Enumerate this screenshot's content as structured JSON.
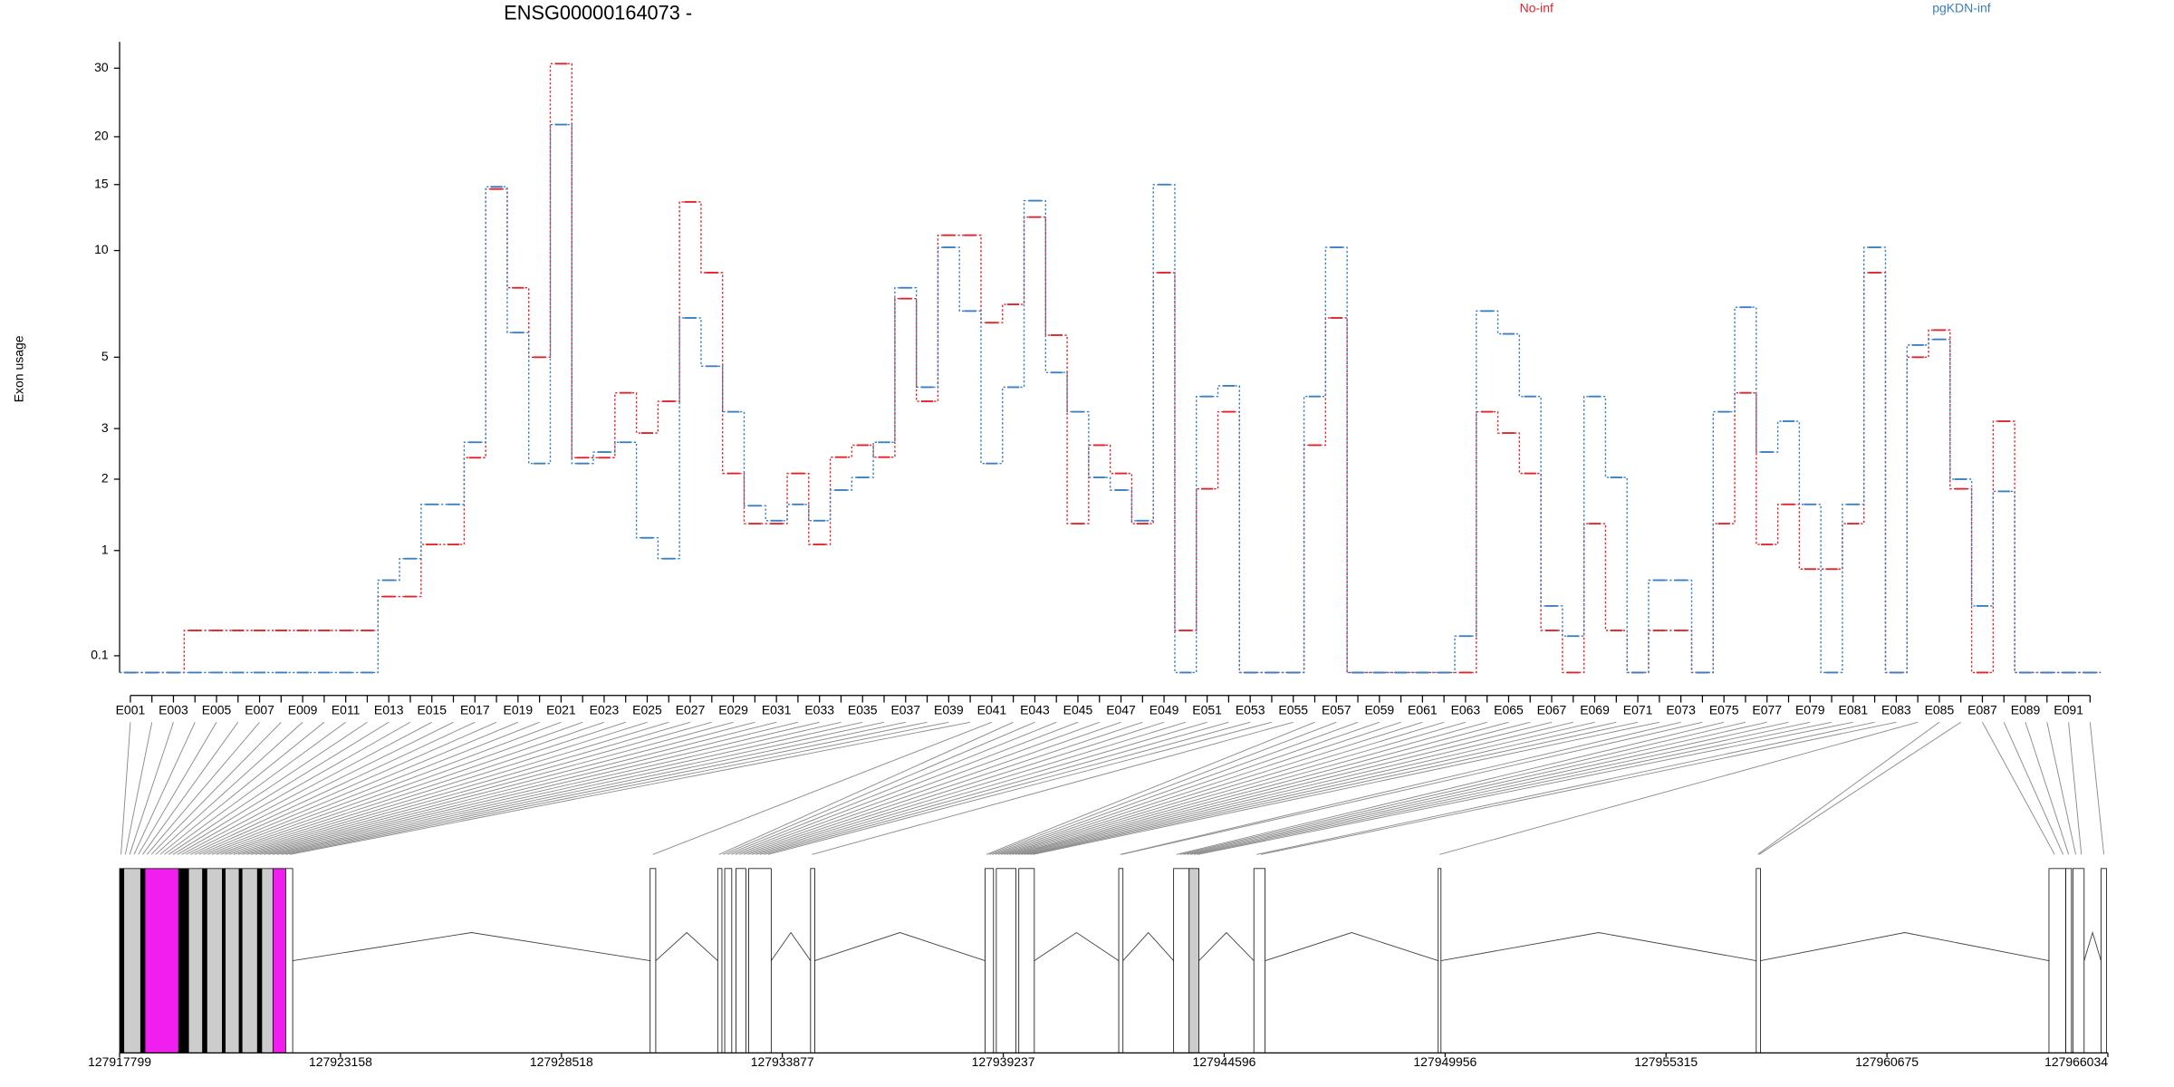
{
  "chart_data": {
    "type": "step",
    "title": "ENSG00000164073 -",
    "y_label": "Exon usage",
    "yscale": "log1p",
    "ylim": [
      0,
      35
    ],
    "yticks": [
      0.1,
      1,
      2,
      3,
      5,
      10,
      15,
      20,
      30
    ],
    "categories": [
      "E001",
      null,
      "E003",
      null,
      "E005",
      null,
      "E007",
      null,
      "E009",
      null,
      "E011",
      null,
      "E013",
      null,
      "E015",
      null,
      "E017",
      null,
      "E019",
      null,
      "E021",
      null,
      "E023",
      null,
      "E025",
      null,
      "E027",
      null,
      "E029",
      null,
      "E031",
      null,
      "E033",
      null,
      "E035",
      null,
      "E037",
      null,
      "E039",
      null,
      "E041",
      null,
      "E043",
      null,
      "E045",
      null,
      "E047",
      null,
      "E049",
      null,
      "E051",
      null,
      "E053",
      null,
      "E055",
      null,
      "E057",
      null,
      "E059",
      null,
      "E061",
      null,
      "E063",
      null,
      "E065",
      null,
      "E067",
      null,
      "E069",
      null,
      "E071",
      null,
      "E073",
      null,
      "E075",
      null,
      "E077",
      null,
      "E079",
      null,
      "E081",
      null,
      "E083",
      null,
      "E085",
      null,
      "E087",
      null,
      "E089",
      null,
      "E091",
      null
    ],
    "series": [
      {
        "name": "No-inf",
        "color": "#e0242a",
        "values": [
          0,
          0,
          0,
          0.27,
          0.27,
          0.27,
          0.27,
          0.27,
          0.27,
          0.27,
          0.27,
          0.27,
          0.54,
          0.54,
          1.07,
          1.07,
          2.39,
          14.6,
          7.9,
          5,
          30.8,
          2.39,
          2.39,
          3.9,
          2.9,
          3.67,
          13.5,
          8.7,
          2.1,
          1.33,
          1.33,
          2.1,
          1.07,
          2.4,
          2.64,
          2.4,
          7.37,
          3.67,
          11,
          11,
          6.3,
          7.1,
          12.3,
          5.8,
          1.33,
          2.64,
          2.1,
          1.33,
          8.7,
          0.27,
          1.84,
          3.4,
          0,
          0,
          0,
          2.64,
          6.5,
          0,
          0,
          0,
          0,
          0,
          0,
          3.4,
          2.9,
          2.1,
          0.27,
          0,
          1.33,
          0.27,
          0,
          0.27,
          0.27,
          0,
          1.33,
          3.9,
          1.07,
          1.6,
          0.8,
          0.8,
          1.33,
          8.7,
          0,
          5,
          6,
          1.84,
          0,
          3.17,
          0,
          0,
          0,
          0
        ]
      },
      {
        "name": "pgKDN-inf",
        "color": "#3a7fc1",
        "values": [
          0,
          0,
          0,
          0,
          0,
          0,
          0,
          0,
          0,
          0,
          0,
          0,
          0.69,
          0.91,
          1.6,
          1.6,
          2.7,
          14.8,
          5.9,
          2.28,
          21.5,
          2.28,
          2.5,
          2.7,
          1.15,
          0.91,
          6.5,
          4.7,
          3.4,
          1.58,
          1.37,
          1.6,
          1.37,
          1.82,
          2.03,
          2.7,
          7.9,
          4.06,
          10.2,
          6.8,
          2.28,
          4.06,
          13.6,
          4.5,
          3.4,
          2.03,
          1.82,
          1.37,
          15,
          0,
          3.8,
          4.1,
          0,
          0,
          0,
          3.8,
          10.2,
          0,
          0,
          0,
          0,
          0,
          0.23,
          6.8,
          5.85,
          3.8,
          0.46,
          0.23,
          3.8,
          2.03,
          0,
          0.69,
          0.69,
          0,
          3.4,
          6.97,
          2.5,
          3.17,
          1.6,
          0,
          1.6,
          10.2,
          0,
          5.43,
          5.64,
          2,
          0.46,
          1.8,
          0,
          0,
          0,
          0
        ]
      }
    ],
    "gene_model": {
      "xlim": [
        127917799,
        127966034
      ],
      "xticks": [
        127917799,
        127923158,
        127928518,
        127933877,
        127939237,
        127944596,
        127949956,
        127955315,
        127960675,
        127966034
      ],
      "exon_coords": [
        127917833,
        127917938,
        127918043,
        127918149,
        127918254,
        127918359,
        127918464,
        127918569,
        127918674,
        127918780,
        127918885,
        127918990,
        127919095,
        127919200,
        127919305,
        127919410,
        127919516,
        127919621,
        127919726,
        127919831,
        127919936,
        127920041,
        127920146,
        127920252,
        127920357,
        127920462,
        127920567,
        127920672,
        127920777,
        127920883,
        127920988,
        127921093,
        127921198,
        127921303,
        127921408,
        127921513,
        127921619,
        127921724,
        127921829,
        127921934,
        127930738,
        127932343,
        127932442,
        127932541,
        127932640,
        127932739,
        127932838,
        127932937,
        127933036,
        127933135,
        127933234,
        127933333,
        127933432,
        127933531,
        127934596,
        127938829,
        127938899,
        127938970,
        127939040,
        127939110,
        127939181,
        127939251,
        127939321,
        127939391,
        127939462,
        127939532,
        127939602,
        127939673,
        127939743,
        127939813,
        127939884,
        127939954,
        127942073,
        127942107,
        127943438,
        127943523,
        127943609,
        127943694,
        127943779,
        127943865,
        127943950,
        127945384,
        127945487,
        127949822,
        127957538,
        127957572,
        127964742,
        127964947,
        127965083,
        127965254,
        127965391,
        127965936
      ],
      "blocks": [
        {
          "start": 127917799,
          "end": 127917901,
          "fill": "#000000"
        },
        {
          "start": 127917901,
          "end": 127918311,
          "fill": "#cccccc"
        },
        {
          "start": 127918311,
          "end": 127918414,
          "fill": "#000000"
        },
        {
          "start": 127918414,
          "end": 127919233,
          "fill": "#f01ff0"
        },
        {
          "start": 127919233,
          "end": 127919472,
          "fill": "#000000"
        },
        {
          "start": 127919472,
          "end": 127919813,
          "fill": "#cccccc"
        },
        {
          "start": 127919813,
          "end": 127919916,
          "fill": "#000000"
        },
        {
          "start": 127919916,
          "end": 127920291,
          "fill": "#cccccc"
        },
        {
          "start": 127920291,
          "end": 127920360,
          "fill": "#000000"
        },
        {
          "start": 127920360,
          "end": 127920701,
          "fill": "#cccccc"
        },
        {
          "start": 127920701,
          "end": 127920769,
          "fill": "#000000"
        },
        {
          "start": 127920769,
          "end": 127921145,
          "fill": "#cccccc"
        },
        {
          "start": 127921145,
          "end": 127921247,
          "fill": "#000000"
        },
        {
          "start": 127921247,
          "end": 127921520,
          "fill": "#cccccc"
        },
        {
          "start": 127921520,
          "end": 127921828,
          "fill": "#f01ff0"
        },
        {
          "start": 127921828,
          "end": 127921998,
          "fill": "#ffffff"
        },
        {
          "start": 127930670,
          "end": 127930806,
          "fill": "#ffffff"
        },
        {
          "start": 127932309,
          "end": 127932411,
          "fill": "#ffffff"
        },
        {
          "start": 127932479,
          "end": 127932650,
          "fill": "#ffffff"
        },
        {
          "start": 127932752,
          "end": 127932991,
          "fill": "#ffffff"
        },
        {
          "start": 127933060,
          "end": 127933606,
          "fill": "#ffffff"
        },
        {
          "start": 127934562,
          "end": 127934664,
          "fill": "#ffffff"
        },
        {
          "start": 127938795,
          "end": 127939000,
          "fill": "#ffffff"
        },
        {
          "start": 127939068,
          "end": 127939546,
          "fill": "#ffffff"
        },
        {
          "start": 127939614,
          "end": 127939990,
          "fill": "#ffffff"
        },
        {
          "start": 127942038,
          "end": 127942141,
          "fill": "#ffffff"
        },
        {
          "start": 127943370,
          "end": 127943745,
          "fill": "#ffffff"
        },
        {
          "start": 127943745,
          "end": 127943984,
          "fill": "#cccccc"
        },
        {
          "start": 127945316,
          "end": 127945589,
          "fill": "#ffffff"
        },
        {
          "start": 127949788,
          "end": 127949856,
          "fill": "#ffffff"
        },
        {
          "start": 127957504,
          "end": 127957607,
          "fill": "#ffffff"
        },
        {
          "start": 127964605,
          "end": 127965015,
          "fill": "#ffffff"
        },
        {
          "start": 127965015,
          "end": 127965151,
          "fill": "#ffffff"
        },
        {
          "start": 127965185,
          "end": 127965458,
          "fill": "#ffffff"
        },
        {
          "start": 127965868,
          "end": 127966004,
          "fill": "#ffffff"
        }
      ]
    }
  }
}
